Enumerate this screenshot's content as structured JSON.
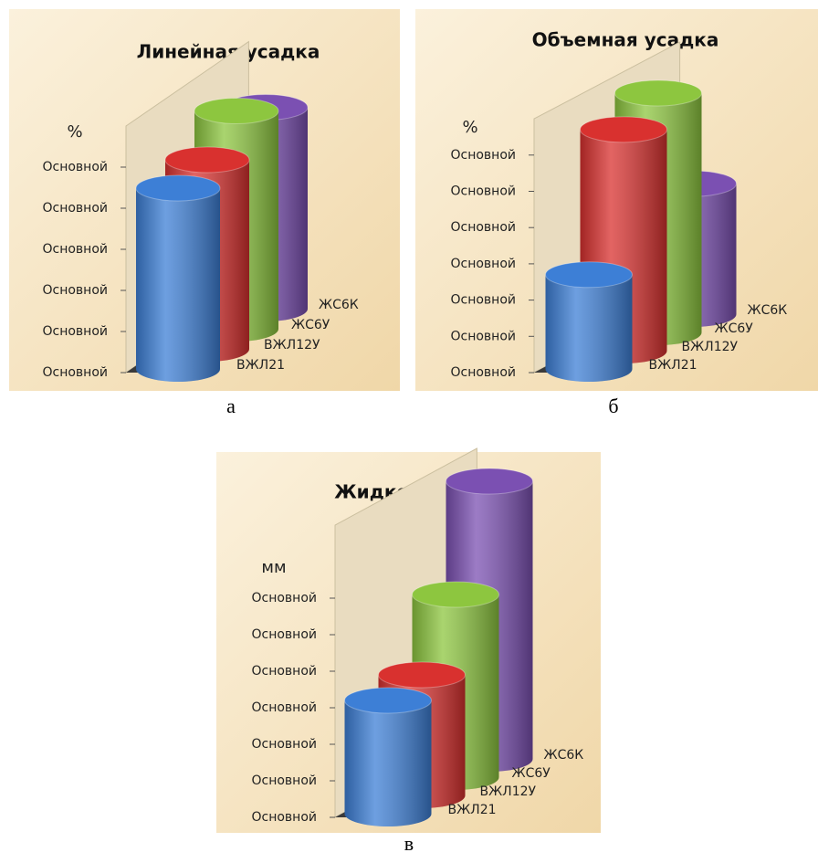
{
  "chart_data": [
    {
      "type": "cylinder3d",
      "title": "Линейная усадка",
      "y_label": "%",
      "caption": "а",
      "categories": [
        "ВЖЛ21",
        "ВЖЛ12У",
        "ЖС6У",
        "ЖС6К"
      ],
      "values": [
        4.4,
        4.6,
        5.3,
        4.9
      ],
      "colors": [
        "#3d7fd6",
        "#d9312f",
        "#8dc63f",
        "#7b50b2"
      ],
      "ylim": [
        0,
        6
      ],
      "yticks": [
        {
          "value": 0,
          "label": "Основной"
        },
        {
          "value": 1,
          "label": "Основной"
        },
        {
          "value": 2,
          "label": "Основной"
        },
        {
          "value": 3,
          "label": "Основной"
        },
        {
          "value": 4,
          "label": "Основной"
        },
        {
          "value": 5,
          "label": "Основной"
        }
      ]
    },
    {
      "type": "cylinder3d",
      "title": "Объемная усадка",
      "y_label": "%",
      "caption": "б",
      "categories": [
        "ВЖЛ21",
        "ВЖЛ12У",
        "ЖС6У",
        "ЖС6К"
      ],
      "values": [
        2.6,
        6.1,
        6.6,
        3.6
      ],
      "colors": [
        "#3d7fd6",
        "#d9312f",
        "#8dc63f",
        "#7b50b2"
      ],
      "ylim": [
        0,
        7
      ],
      "yticks": [
        {
          "value": 0,
          "label": "Основной"
        },
        {
          "value": 1,
          "label": "Основной"
        },
        {
          "value": 2,
          "label": "Основной"
        },
        {
          "value": 3,
          "label": "Основной"
        },
        {
          "value": 4,
          "label": "Основной"
        },
        {
          "value": 5,
          "label": "Основной"
        },
        {
          "value": 6,
          "label": "Основной"
        }
      ]
    },
    {
      "type": "cylinder3d",
      "title": "Жидкотекучесть*",
      "y_label": "мм",
      "caption": "в",
      "categories": [
        "ВЖЛ21",
        "ВЖЛ12У",
        "ЖС6У",
        "ЖС6К"
      ],
      "values": [
        3.1,
        3.3,
        5.0,
        7.6
      ],
      "colors": [
        "#3d7fd6",
        "#d9312f",
        "#8dc63f",
        "#7b50b2"
      ],
      "ylim": [
        0,
        8
      ],
      "yticks": [
        {
          "value": 0,
          "label": "Основной"
        },
        {
          "value": 1,
          "label": "Основной"
        },
        {
          "value": 2,
          "label": "Основной"
        },
        {
          "value": 3,
          "label": "Основной"
        },
        {
          "value": 4,
          "label": "Основной"
        },
        {
          "value": 5,
          "label": "Основной"
        },
        {
          "value": 6,
          "label": "Основной"
        }
      ]
    }
  ]
}
